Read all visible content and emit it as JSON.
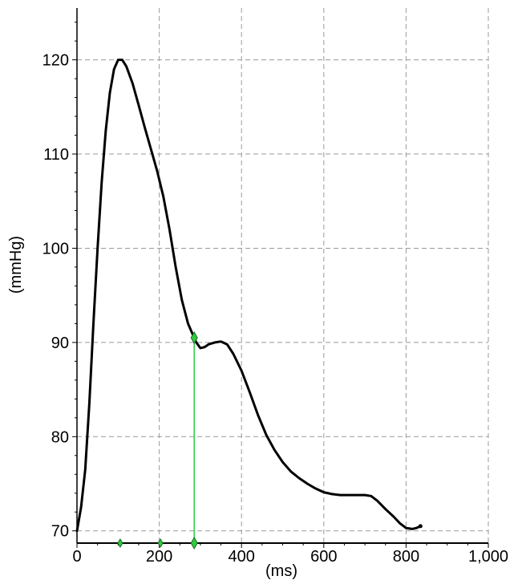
{
  "chart_data": {
    "type": "line",
    "title": "",
    "xlabel": "(ms)",
    "ylabel": "(mmHg)",
    "xlim": [
      0,
      1000
    ],
    "ylim": [
      68.7,
      125.5
    ],
    "grid": true,
    "x_ticks": [
      {
        "value": 0,
        "label": "0"
      },
      {
        "value": 200,
        "label": "200"
      },
      {
        "value": 400,
        "label": "400"
      },
      {
        "value": 600,
        "label": "600"
      },
      {
        "value": 800,
        "label": "800"
      },
      {
        "value": 1000,
        "label": "1,000"
      }
    ],
    "y_ticks": [
      {
        "value": 70,
        "label": "70"
      },
      {
        "value": 80,
        "label": "80"
      },
      {
        "value": 90,
        "label": "90"
      },
      {
        "value": 100,
        "label": "100"
      },
      {
        "value": 110,
        "label": "110"
      },
      {
        "value": 120,
        "label": "120"
      }
    ],
    "series": [
      {
        "name": "",
        "color": "#000000",
        "points": [
          [
            0,
            70.0
          ],
          [
            10,
            72.5
          ],
          [
            20,
            76.5
          ],
          [
            30,
            83.5
          ],
          [
            40,
            92.0
          ],
          [
            50,
            100.0
          ],
          [
            60,
            107.0
          ],
          [
            70,
            112.5
          ],
          [
            80,
            116.5
          ],
          [
            90,
            119.0
          ],
          [
            100,
            120.0
          ],
          [
            110,
            120.0
          ],
          [
            120,
            119.3
          ],
          [
            135,
            117.5
          ],
          [
            150,
            115.2
          ],
          [
            165,
            112.8
          ],
          [
            180,
            110.5
          ],
          [
            195,
            108.2
          ],
          [
            210,
            105.5
          ],
          [
            225,
            102.0
          ],
          [
            240,
            98.0
          ],
          [
            255,
            94.5
          ],
          [
            270,
            92.0
          ],
          [
            280,
            91.0
          ],
          [
            290,
            90.0
          ],
          [
            300,
            89.4
          ],
          [
            310,
            89.5
          ],
          [
            320,
            89.8
          ],
          [
            335,
            90.0
          ],
          [
            350,
            90.1
          ],
          [
            365,
            89.8
          ],
          [
            380,
            88.8
          ],
          [
            400,
            87.0
          ],
          [
            420,
            84.7
          ],
          [
            440,
            82.3
          ],
          [
            460,
            80.2
          ],
          [
            480,
            78.6
          ],
          [
            500,
            77.3
          ],
          [
            520,
            76.3
          ],
          [
            540,
            75.6
          ],
          [
            560,
            75.0
          ],
          [
            580,
            74.5
          ],
          [
            600,
            74.1
          ],
          [
            620,
            73.9
          ],
          [
            640,
            73.8
          ],
          [
            660,
            73.8
          ],
          [
            680,
            73.8
          ],
          [
            700,
            73.8
          ],
          [
            715,
            73.7
          ],
          [
            730,
            73.2
          ],
          [
            750,
            72.3
          ],
          [
            770,
            71.5
          ],
          [
            785,
            70.8
          ],
          [
            800,
            70.3
          ],
          [
            815,
            70.2
          ],
          [
            825,
            70.3
          ],
          [
            835,
            70.5
          ]
        ]
      }
    ],
    "markers": {
      "color": "#2ecc40",
      "vertical_line_x": 285,
      "curve_point": {
        "x": 285,
        "y": 90.5
      },
      "baseline_diamonds": [
        105,
        203,
        285
      ]
    }
  }
}
